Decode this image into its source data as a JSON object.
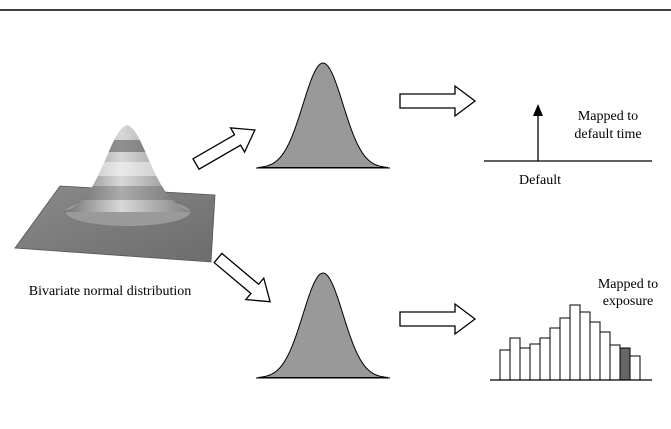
{
  "left_label": "Bivariate normal distribution",
  "top_branch": {
    "label_lines": [
      "Mapped to",
      "default time"
    ],
    "axis_label": "Default"
  },
  "bottom_branch": {
    "label_lines": [
      "Mapped to",
      "exposure"
    ]
  }
}
